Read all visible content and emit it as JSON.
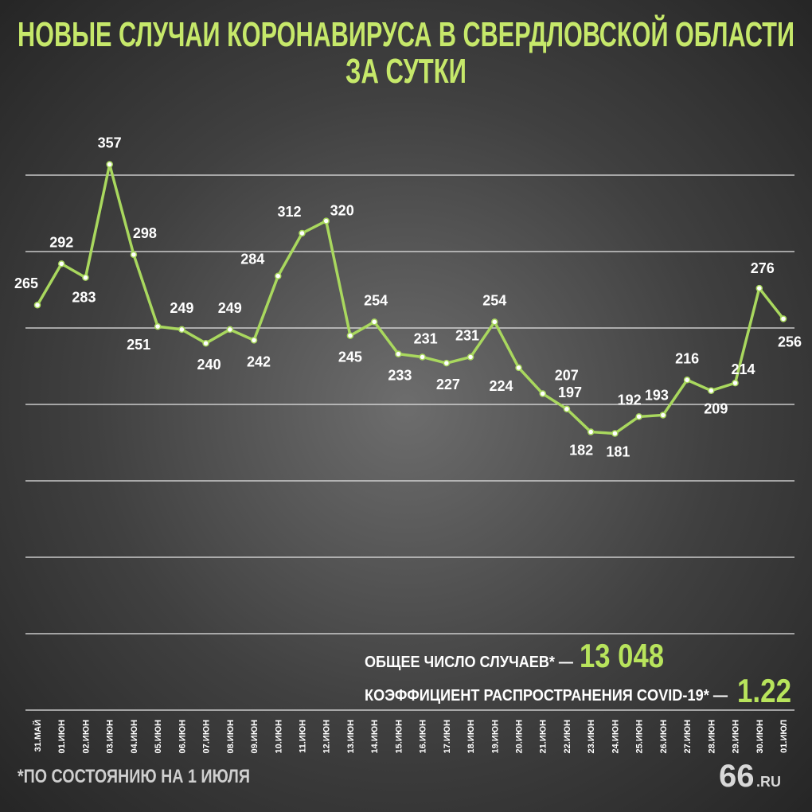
{
  "chart_data": {
    "type": "line",
    "title": [
      "НОВЫЕ СЛУЧАИ КОРОНАВИРУСА В СВЕРДЛОВСКОЙ ОБЛАСТИ",
      "ЗА СУТКИ"
    ],
    "categories": [
      "31.МАЙ",
      "01.ИЮН",
      "02.ИЮН",
      "03.ИЮН",
      "04.ИЮН",
      "05.ИЮН",
      "06.ИЮН",
      "07.ИЮН",
      "08.ИЮН",
      "09.ИЮН",
      "10.ИЮН",
      "11.ИЮН",
      "12.ИЮН",
      "13.ИЮН",
      "14.ИЮН",
      "15.ИЮН",
      "16.ИЮН",
      "17.ИЮН",
      "18.ИЮН",
      "19.ИЮН",
      "20.ИЮН",
      "21.ИЮН",
      "22.ИЮН",
      "23.ИЮН",
      "24.ИЮН",
      "25.ИЮН",
      "26.ИЮН",
      "27.ИЮН",
      "28.ИЮН",
      "29.ИЮН",
      "30.ИЮН",
      "01.ИЮЛ"
    ],
    "values": [
      265,
      292,
      283,
      357,
      298,
      251,
      249,
      240,
      249,
      242,
      284,
      312,
      320,
      245,
      254,
      233,
      231,
      227,
      231,
      254,
      224,
      207,
      197,
      182,
      181,
      192,
      193,
      216,
      209,
      214,
      276,
      256
    ],
    "color": "#a9d85e",
    "ylim": [
      0,
      400
    ],
    "yticks": [
      0,
      50,
      100,
      150,
      200,
      250,
      300,
      350
    ],
    "grid": true,
    "annotations": {
      "total_label": "ОБЩЕЕ ЧИСЛО СЛУЧАЕВ* —",
      "total_value": "13 048",
      "rate_label": "КОЭФФИЦИЕНТ РАСПРОСТРАНЕНИЯ COVID-19* —",
      "rate_value": "1.22",
      "footnote": "*ПО СОСТОЯНИЮ НА 1 ИЮЛЯ",
      "logo": "66",
      "logo_suffix": ".RU"
    }
  }
}
